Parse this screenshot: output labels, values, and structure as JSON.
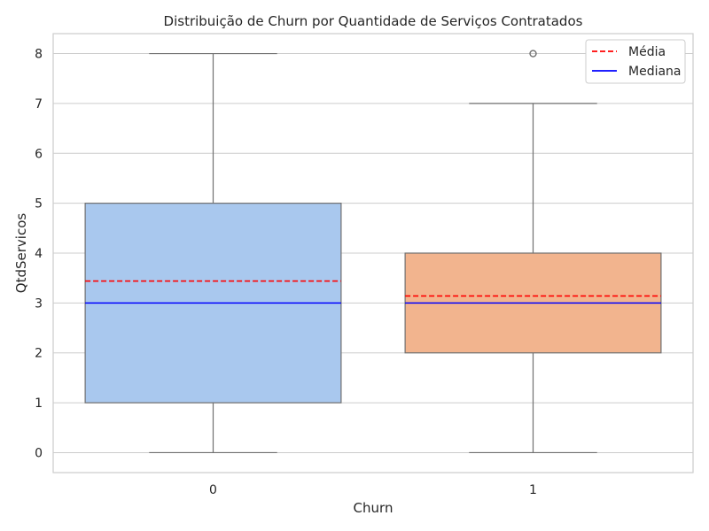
{
  "chart_data": {
    "type": "box",
    "title": "Distribuição de Churn por Quantidade de Serviços Contratados",
    "xlabel": "Churn",
    "ylabel": "QtdServicos",
    "categories": [
      "0",
      "1"
    ],
    "ylim": [
      -0.4,
      8.4
    ],
    "yticks": [
      0,
      1,
      2,
      3,
      4,
      5,
      6,
      7,
      8
    ],
    "grid": true,
    "legend_position": "top-right",
    "boxes": [
      {
        "category": "0",
        "min": 0,
        "q1": 1,
        "median": 3,
        "q3": 5,
        "max": 8,
        "mean": 3.44,
        "outliers": [],
        "color": "#a9c8ee"
      },
      {
        "category": "1",
        "min": 0,
        "q1": 2,
        "median": 3,
        "q3": 4,
        "max": 7,
        "mean": 3.14,
        "outliers": [
          8
        ],
        "color": "#f2b48e"
      }
    ],
    "legend": [
      {
        "label": "Média",
        "color": "#ff0000",
        "style": "dashed"
      },
      {
        "label": "Mediana",
        "color": "#0000ff",
        "style": "solid"
      }
    ]
  }
}
